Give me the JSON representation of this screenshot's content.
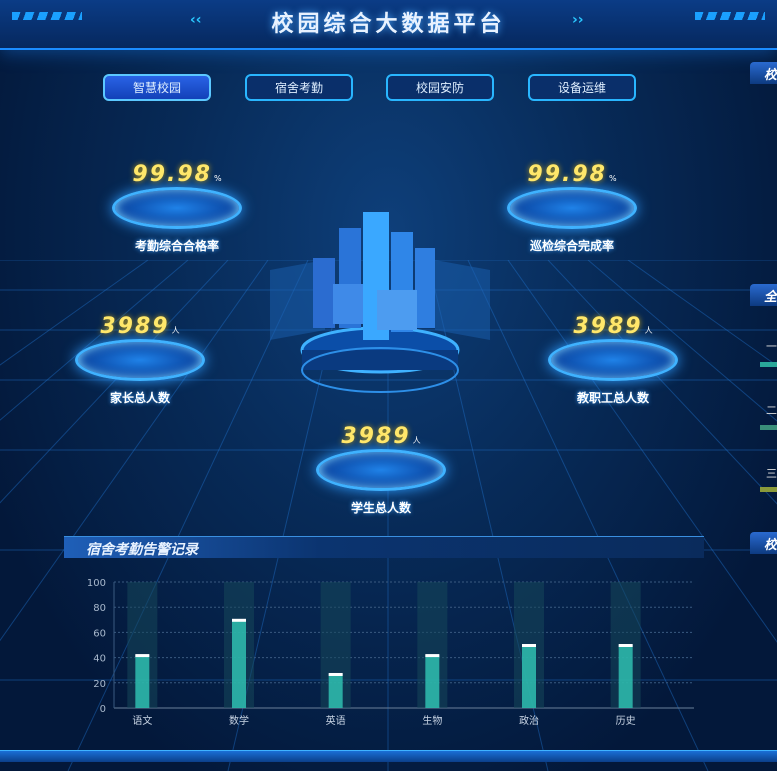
{
  "header": {
    "title": "校园综合大数据平台"
  },
  "nav": [
    {
      "label": "智慧校园",
      "active": true
    },
    {
      "label": "宿舍考勤"
    },
    {
      "label": "校园安防"
    },
    {
      "label": "设备运维"
    }
  ],
  "stats": [
    {
      "value": "99.98",
      "unit": "%",
      "label": "考勤综合合格率"
    },
    {
      "value": "99.98",
      "unit": "%",
      "label": "巡检综合完成率"
    },
    {
      "value": "3989",
      "unit": "人",
      "label": "家长总人数"
    },
    {
      "value": "3989",
      "unit": "人",
      "label": "教职工总人数"
    },
    {
      "value": "3989",
      "unit": "人",
      "label": "学生总人数"
    }
  ],
  "right_panel": {
    "headers": [
      "校",
      "全",
      "校"
    ],
    "ranks": [
      "一",
      "二",
      "三"
    ],
    "rank_colors": [
      "#2aa89a",
      "#3a8f7a",
      "#8a9a3a"
    ]
  },
  "panel": {
    "title": "宿舍考勤告警记录"
  },
  "chart_data": {
    "type": "bar",
    "categories": [
      "语文",
      "数学",
      "英语",
      "生物",
      "政治",
      "历史"
    ],
    "values": [
      42,
      70,
      27,
      42,
      50,
      50
    ],
    "ylim": [
      0,
      100
    ],
    "yticks": [
      0,
      20,
      40,
      60,
      80,
      100
    ],
    "grid": true,
    "colors": {
      "bar": "#2fc0b0",
      "background_bar": "#15475a"
    }
  }
}
